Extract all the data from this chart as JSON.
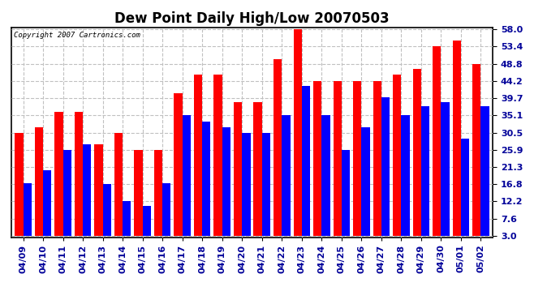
{
  "title": "Dew Point Daily High/Low 20070503",
  "copyright": "Copyright 2007 Cartronics.com",
  "categories": [
    "04/09",
    "04/10",
    "04/11",
    "04/12",
    "04/13",
    "04/14",
    "04/15",
    "04/16",
    "04/17",
    "04/18",
    "04/19",
    "04/20",
    "04/21",
    "04/22",
    "04/23",
    "04/24",
    "04/25",
    "04/26",
    "04/27",
    "04/28",
    "04/29",
    "04/30",
    "05/01",
    "05/02"
  ],
  "highs": [
    30.5,
    32.0,
    36.0,
    36.0,
    27.5,
    30.5,
    25.9,
    25.9,
    41.0,
    46.0,
    46.0,
    38.5,
    38.5,
    50.0,
    58.0,
    44.2,
    44.2,
    44.2,
    44.2,
    46.0,
    47.5,
    53.4,
    55.0,
    48.8
  ],
  "lows": [
    17.0,
    20.5,
    25.9,
    27.5,
    16.8,
    12.2,
    11.0,
    17.0,
    35.1,
    33.5,
    32.0,
    30.5,
    30.5,
    35.1,
    43.0,
    35.1,
    25.9,
    32.0,
    40.0,
    35.1,
    37.5,
    38.5,
    29.0,
    37.5
  ],
  "high_color": "#ff0000",
  "low_color": "#0000ff",
  "bg_color": "#ffffff",
  "grid_color": "#c0c0c0",
  "yticks": [
    3.0,
    7.6,
    12.2,
    16.8,
    21.3,
    25.9,
    30.5,
    35.1,
    39.7,
    44.2,
    48.8,
    53.4,
    58.0
  ],
  "ymin": 3.0,
  "ymax": 58.0,
  "title_fontsize": 12,
  "tick_fontsize": 8,
  "bar_width": 0.42
}
